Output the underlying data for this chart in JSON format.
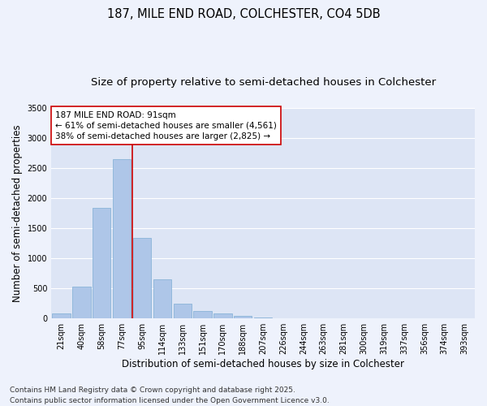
{
  "title_line1": "187, MILE END ROAD, COLCHESTER, CO4 5DB",
  "title_line2": "Size of property relative to semi-detached houses in Colchester",
  "xlabel": "Distribution of semi-detached houses by size in Colchester",
  "ylabel": "Number of semi-detached properties",
  "bar_labels": [
    "21sqm",
    "40sqm",
    "58sqm",
    "77sqm",
    "95sqm",
    "114sqm",
    "133sqm",
    "151sqm",
    "170sqm",
    "188sqm",
    "207sqm",
    "226sqm",
    "244sqm",
    "263sqm",
    "281sqm",
    "300sqm",
    "319sqm",
    "337sqm",
    "356sqm",
    "374sqm",
    "393sqm"
  ],
  "bar_values": [
    80,
    530,
    1840,
    2650,
    1340,
    650,
    240,
    120,
    80,
    40,
    15,
    5,
    3,
    1,
    1,
    0,
    0,
    0,
    0,
    0,
    0
  ],
  "bar_color": "#aec6e8",
  "bar_edge_color": "#8ab4d8",
  "vline_x_index": 3.5,
  "vline_color": "#cc0000",
  "annotation_text_line1": "187 MILE END ROAD: 91sqm",
  "annotation_text_line2": "← 61% of semi-detached houses are smaller (4,561)",
  "annotation_text_line3": "38% of semi-detached houses are larger (2,825) →",
  "annotation_box_color": "#ffffff",
  "annotation_box_edge": "#cc0000",
  "ylim": [
    0,
    3500
  ],
  "yticks": [
    0,
    500,
    1000,
    1500,
    2000,
    2500,
    3000,
    3500
  ],
  "background_color": "#eef2fc",
  "plot_bg_color": "#dde5f5",
  "grid_color": "#ffffff",
  "footer_line1": "Contains HM Land Registry data © Crown copyright and database right 2025.",
  "footer_line2": "Contains public sector information licensed under the Open Government Licence v3.0.",
  "title_fontsize": 10.5,
  "subtitle_fontsize": 9.5,
  "axis_label_fontsize": 8.5,
  "tick_fontsize": 7,
  "annotation_fontsize": 7.5,
  "footer_fontsize": 6.5
}
